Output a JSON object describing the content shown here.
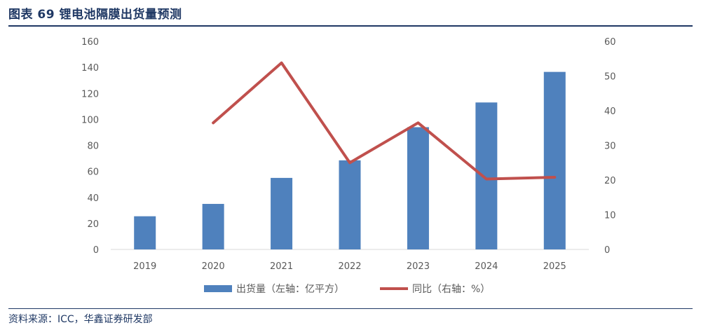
{
  "header": {
    "title": "图表 69 锂电池隔膜出货量预测"
  },
  "footer": {
    "source": "资料来源：ICC，华鑫证券研发部"
  },
  "colors": {
    "bar": "#4f81bd",
    "line": "#c0504d",
    "rule": "#1f3864"
  },
  "chart_data": {
    "type": "bar",
    "categories": [
      "2019",
      "2020",
      "2021",
      "2022",
      "2023",
      "2024",
      "2025"
    ],
    "series": [
      {
        "name": "出货量（左轴：亿平方）",
        "type": "bar",
        "axis": "left",
        "values": [
          25.5,
          35,
          55,
          68.5,
          94,
          113,
          136.5
        ]
      },
      {
        "name": "同比（右轴：%）",
        "type": "line",
        "axis": "right",
        "values": [
          null,
          36.5,
          53.8,
          25,
          36.5,
          20.3,
          20.8
        ]
      }
    ],
    "y_left": {
      "min": 0,
      "max": 160,
      "ticks": [
        0,
        20,
        40,
        60,
        80,
        100,
        120,
        140,
        160
      ]
    },
    "y_right": {
      "min": 0,
      "max": 60,
      "ticks": [
        0,
        10,
        20,
        30,
        40,
        50,
        60
      ]
    },
    "grid": false,
    "legend": "bottom"
  }
}
